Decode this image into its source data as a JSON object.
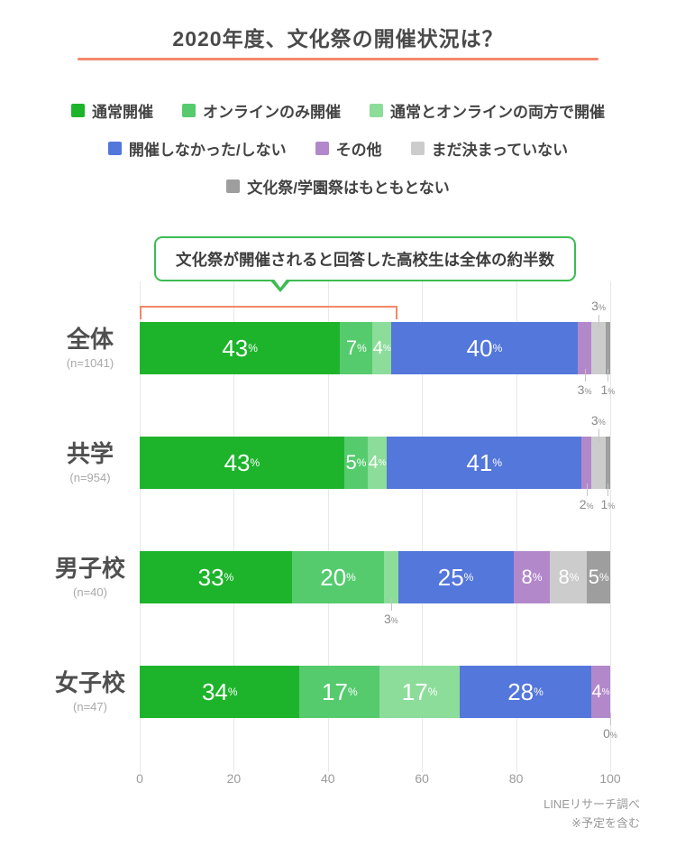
{
  "title": "2020年度、文化祭の開催状況は？",
  "accent_colors": {
    "title_rule_orange": "#f4876b",
    "callout_green": "#3cbc53",
    "bracket_orange": "#f4876b"
  },
  "legend": {
    "rows": [
      [
        0,
        1,
        2
      ],
      [
        3,
        4,
        5
      ],
      [
        6
      ]
    ]
  },
  "callout": {
    "text": "文化祭が開催されると回答した高校生は全体の約半数"
  },
  "annotation": {
    "bracket_span_pct": 54
  },
  "chart_data": {
    "type": "bar",
    "stacked": true,
    "orientation": "horizontal",
    "unit": "%",
    "series": [
      "通常開催",
      "オンラインのみ開催",
      "通常とオンラインの両方で開催",
      "開催しなかった/しない",
      "その他",
      "まだ決まっていない",
      "文化祭/学園祭はもともとない"
    ],
    "colors": [
      "#1db42b",
      "#55cb6e",
      "#8cdd99",
      "#5377db",
      "#b388cb",
      "#cccccc",
      "#9e9e9e"
    ],
    "categories": [
      "全体",
      "共学",
      "男子校",
      "女子校"
    ],
    "n_labels": [
      "(n=1041)",
      "(n=954)",
      "(n=40)",
      "(n=47)"
    ],
    "values": [
      [
        43,
        7,
        4,
        40,
        3,
        3,
        1
      ],
      [
        43,
        5,
        4,
        41,
        2,
        3,
        1
      ],
      [
        33,
        20,
        3,
        25,
        8,
        8,
        5
      ],
      [
        34,
        17,
        17,
        28,
        4,
        0,
        0
      ]
    ],
    "label_positions": [
      [
        "in",
        "in",
        "in",
        "in",
        "below",
        "above",
        "below"
      ],
      [
        "in",
        "in",
        "in",
        "in",
        "below",
        "above",
        "below"
      ],
      [
        "in",
        "in",
        "below",
        "in",
        "in",
        "in",
        "in"
      ],
      [
        "in",
        "in",
        "in",
        "in",
        "in",
        "none",
        "below"
      ]
    ],
    "x_ticks": [
      "0",
      "20",
      "40",
      "60",
      "80",
      "100"
    ],
    "xlim": [
      0,
      100
    ],
    "grid": true,
    "legend_position": "top"
  },
  "footer": {
    "line1": "LINEリサーチ調べ",
    "line2": "※予定を含む"
  }
}
